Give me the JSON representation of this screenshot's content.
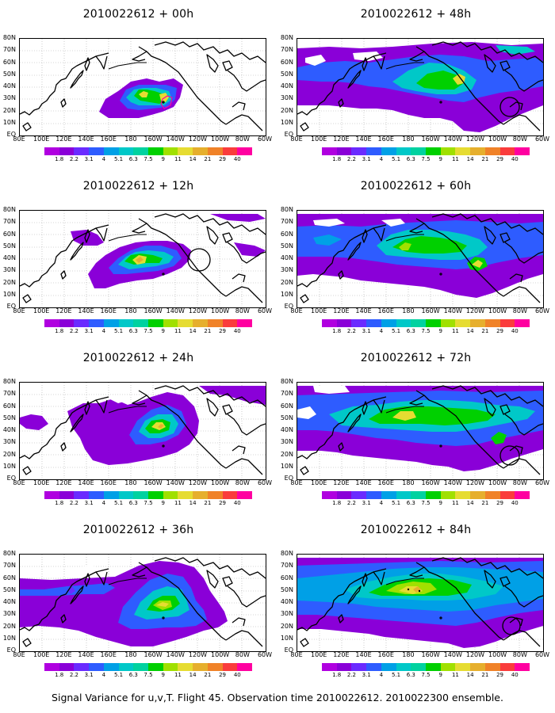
{
  "caption": "Signal Variance for u,v,T. Flight 45. Observation time 2010022612. 2010022300 ensemble.",
  "lat_labels": [
    "80N",
    "70N",
    "60N",
    "50N",
    "40N",
    "30N",
    "20N",
    "10N",
    "EQ"
  ],
  "lon_labels": [
    "80E",
    "100E",
    "120E",
    "140E",
    "160E",
    "180",
    "160W",
    "140W",
    "120W",
    "100W",
    "80W",
    "60W"
  ],
  "colorbar": {
    "labels": [
      "1.8",
      "2.2",
      "3.1",
      "4",
      "5.1",
      "6.3",
      "7.5",
      "9",
      "11",
      "14",
      "21",
      "29",
      "40"
    ],
    "colors": [
      "#b000e0",
      "#8a00d8",
      "#6a2bff",
      "#2e5cff",
      "#00a0e6",
      "#00c8c8",
      "#00d2a0",
      "#00d000",
      "#a0e000",
      "#e6dc32",
      "#e6af2d",
      "#f08228",
      "#fa3c3c",
      "#ff00a0"
    ]
  },
  "panels": [
    {
      "title": "2010022612 + 00h",
      "id": "p00"
    },
    {
      "title": "2010022612 + 48h",
      "id": "p48"
    },
    {
      "title": "2010022612 + 12h",
      "id": "p12"
    },
    {
      "title": "2010022612 + 60h",
      "id": "p60"
    },
    {
      "title": "2010022612 + 24h",
      "id": "p24"
    },
    {
      "title": "2010022612 + 72h",
      "id": "p72"
    },
    {
      "title": "2010022612 + 36h",
      "id": "p36"
    },
    {
      "title": "2010022612 + 84h",
      "id": "p84"
    }
  ]
}
